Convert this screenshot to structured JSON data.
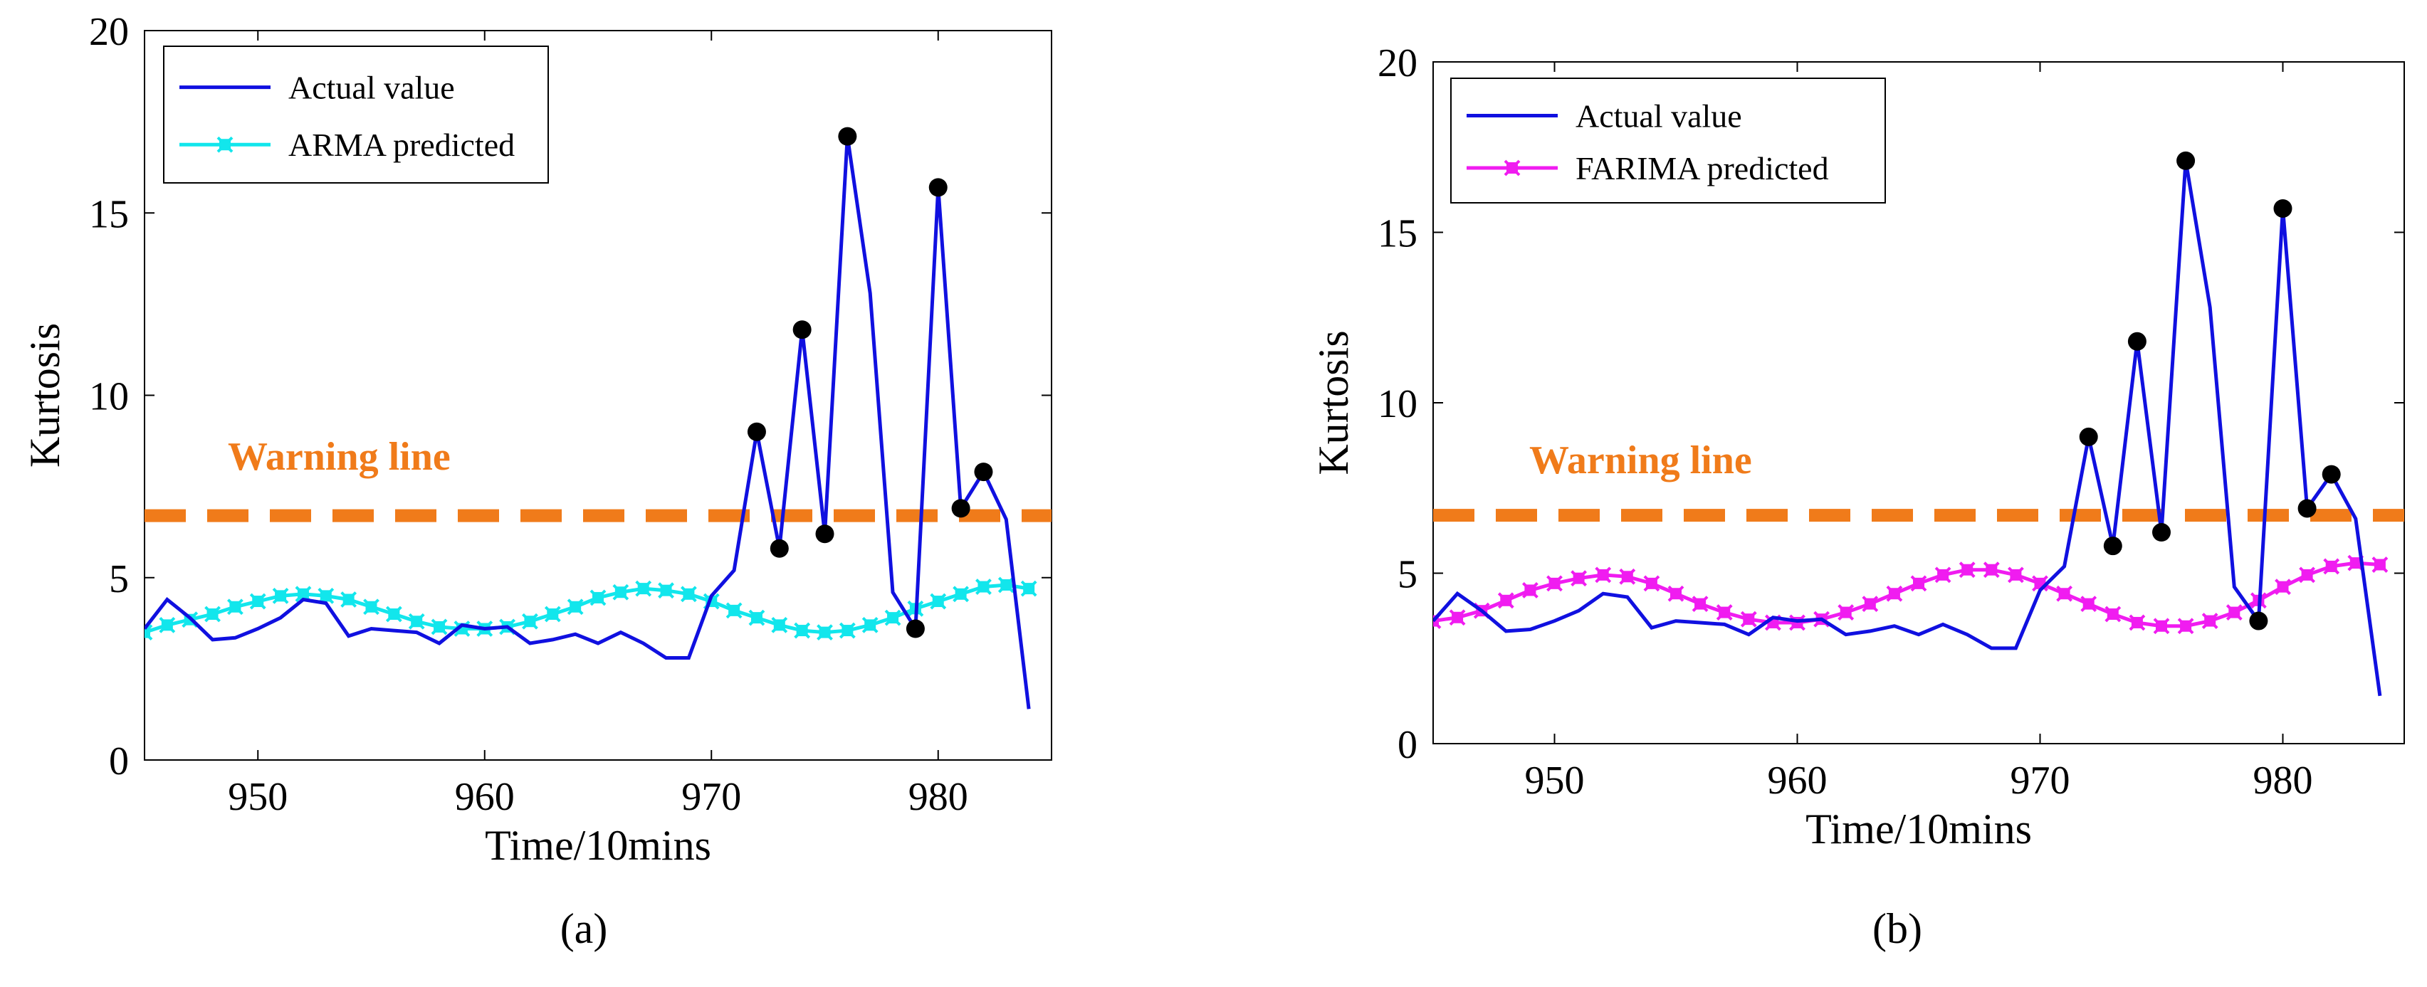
{
  "chart_data": [
    {
      "type": "line",
      "panel_label": "(a)",
      "xlabel": "Time/10mins",
      "ylabel": "Kurtosis",
      "xlim": [
        945,
        985
      ],
      "ylim": [
        0,
        20
      ],
      "xticks": [
        950,
        960,
        970,
        980
      ],
      "yticks": [
        0,
        5,
        10,
        15,
        20
      ],
      "grid": false,
      "legend_position": "top-left",
      "warning_line": {
        "label": "Warning line",
        "value": 6.7,
        "color": "#f07b1a"
      },
      "x": [
        945,
        946,
        947,
        948,
        949,
        950,
        951,
        952,
        953,
        954,
        955,
        956,
        957,
        958,
        959,
        960,
        961,
        962,
        963,
        964,
        965,
        966,
        967,
        968,
        969,
        970,
        971,
        972,
        973,
        974,
        975,
        976,
        977,
        978,
        979,
        980,
        981,
        982,
        983,
        984
      ],
      "series": [
        {
          "name": "Actual value",
          "color": "#1010e0",
          "values": [
            3.6,
            4.4,
            3.9,
            3.3,
            3.35,
            3.6,
            3.9,
            4.4,
            4.3,
            3.4,
            3.6,
            3.55,
            3.5,
            3.2,
            3.7,
            3.6,
            3.65,
            3.2,
            3.3,
            3.45,
            3.2,
            3.5,
            3.2,
            2.8,
            2.8,
            4.5,
            5.2,
            9.0,
            5.8,
            11.8,
            6.2,
            17.1,
            12.8,
            4.6,
            3.6,
            15.7,
            6.9,
            7.9,
            6.6,
            1.4
          ]
        },
        {
          "name": "ARMA predicted",
          "color": "#12e6ec",
          "values": [
            3.5,
            3.7,
            3.85,
            4.0,
            4.2,
            4.35,
            4.5,
            4.55,
            4.5,
            4.4,
            4.2,
            4.0,
            3.8,
            3.65,
            3.6,
            3.6,
            3.65,
            3.8,
            4.0,
            4.2,
            4.45,
            4.6,
            4.7,
            4.65,
            4.55,
            4.35,
            4.1,
            3.9,
            3.7,
            3.55,
            3.5,
            3.55,
            3.7,
            3.9,
            4.15,
            4.35,
            4.55,
            4.75,
            4.8,
            4.7
          ]
        }
      ],
      "markers_above_warning": {
        "color": "#000000",
        "points": [
          [
            972,
            9.0
          ],
          [
            973,
            5.8
          ],
          [
            974,
            11.8
          ],
          [
            975,
            6.2
          ],
          [
            976,
            17.1
          ],
          [
            979,
            3.6
          ],
          [
            980,
            15.7
          ],
          [
            981,
            6.9
          ],
          [
            982,
            7.9
          ]
        ]
      }
    },
    {
      "type": "line",
      "panel_label": "(b)",
      "xlabel": "Time/10mins",
      "ylabel": "Kurtosis",
      "xlim": [
        945,
        985
      ],
      "ylim": [
        0,
        20
      ],
      "xticks": [
        950,
        960,
        970,
        980
      ],
      "yticks": [
        0,
        5,
        10,
        15,
        20
      ],
      "grid": false,
      "legend_position": "top-left",
      "warning_line": {
        "label": "Warning line",
        "value": 6.7,
        "color": "#f07b1a"
      },
      "x": [
        945,
        946,
        947,
        948,
        949,
        950,
        951,
        952,
        953,
        954,
        955,
        956,
        957,
        958,
        959,
        960,
        961,
        962,
        963,
        964,
        965,
        966,
        967,
        968,
        969,
        970,
        971,
        972,
        973,
        974,
        975,
        976,
        977,
        978,
        979,
        980,
        981,
        982,
        983,
        984
      ],
      "series": [
        {
          "name": "Actual value",
          "color": "#1010e0",
          "values": [
            3.6,
            4.4,
            3.9,
            3.3,
            3.35,
            3.6,
            3.9,
            4.4,
            4.3,
            3.4,
            3.6,
            3.55,
            3.5,
            3.2,
            3.7,
            3.6,
            3.65,
            3.2,
            3.3,
            3.45,
            3.2,
            3.5,
            3.2,
            2.8,
            2.8,
            4.5,
            5.2,
            9.0,
            5.8,
            11.8,
            6.2,
            17.1,
            12.8,
            4.6,
            3.6,
            15.7,
            6.9,
            7.9,
            6.6,
            1.4
          ]
        },
        {
          "name": "FARIMA predicted",
          "color": "#f01cf0",
          "values": [
            3.6,
            3.7,
            3.9,
            4.2,
            4.5,
            4.7,
            4.85,
            4.95,
            4.9,
            4.7,
            4.4,
            4.1,
            3.85,
            3.65,
            3.55,
            3.55,
            3.65,
            3.85,
            4.1,
            4.4,
            4.7,
            4.95,
            5.1,
            5.1,
            4.95,
            4.7,
            4.4,
            4.1,
            3.8,
            3.55,
            3.45,
            3.45,
            3.6,
            3.85,
            4.2,
            4.6,
            4.95,
            5.2,
            5.3,
            5.25
          ]
        }
      ],
      "markers_above_warning": {
        "color": "#000000",
        "points": [
          [
            972,
            9.0
          ],
          [
            973,
            5.8
          ],
          [
            974,
            11.8
          ],
          [
            975,
            6.2
          ],
          [
            976,
            17.1
          ],
          [
            979,
            3.6
          ],
          [
            980,
            15.7
          ],
          [
            981,
            6.9
          ],
          [
            982,
            7.9
          ]
        ]
      }
    }
  ]
}
